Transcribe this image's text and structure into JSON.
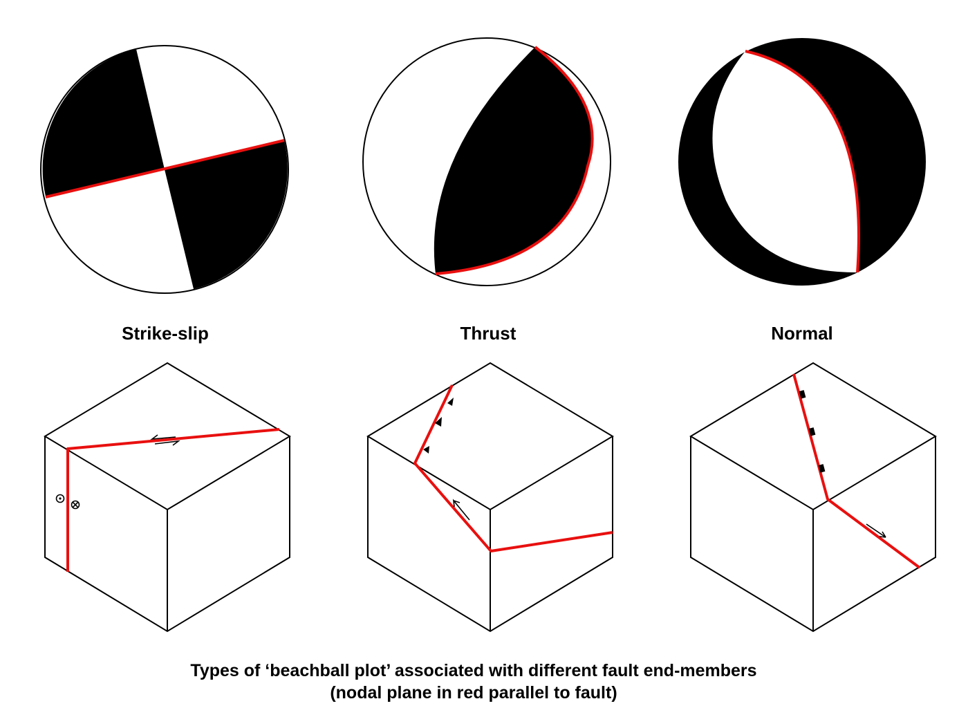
{
  "panels": [
    {
      "id": "strike-slip",
      "label": "Strike-slip"
    },
    {
      "id": "thrust",
      "label": "Thrust"
    },
    {
      "id": "normal",
      "label": "Normal"
    }
  ],
  "caption": {
    "line1": "Types of ‘beachball plot’ associated with different fault end-members",
    "line2": "(nodal plane in red parallel to fault)"
  },
  "colors": {
    "compressional": "#000000",
    "dilatational": "#ffffff",
    "nodal_plane": "#e8100f",
    "outline": "#000000"
  }
}
